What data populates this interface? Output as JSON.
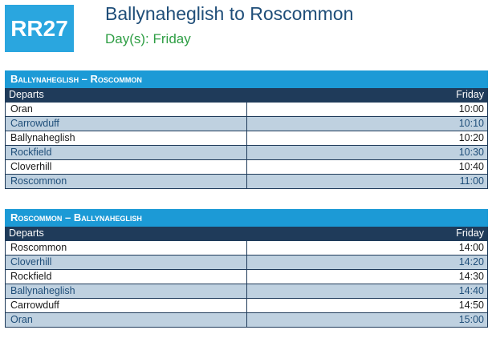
{
  "header": {
    "route_code": "RR27",
    "route_name": "Ballynaheglish to Roscommon",
    "days": "Day(s): Friday"
  },
  "timetables": [
    {
      "section_title": "Ballynaheglish – Roscommon",
      "columns": {
        "stop": "Departs",
        "day": "Friday"
      },
      "rows": [
        {
          "stop": "Oran",
          "time": "10:00"
        },
        {
          "stop": "Carrowduff",
          "time": "10:10"
        },
        {
          "stop": "Ballynaheglish",
          "time": "10:20"
        },
        {
          "stop": "Rockfield",
          "time": "10:30"
        },
        {
          "stop": "Cloverhill",
          "time": "10:40"
        },
        {
          "stop": "Roscommon",
          "time": "11:00"
        }
      ]
    },
    {
      "section_title": "Roscommon – Ballynaheglish",
      "columns": {
        "stop": "Departs",
        "day": "Friday"
      },
      "rows": [
        {
          "stop": "Roscommon",
          "time": "14:00"
        },
        {
          "stop": "Cloverhill",
          "time": "14:20"
        },
        {
          "stop": "Rockfield",
          "time": "14:30"
        },
        {
          "stop": "Ballynaheglish",
          "time": "14:40"
        },
        {
          "stop": "Carrowduff",
          "time": "14:50"
        },
        {
          "stop": "Oran",
          "time": "15:00"
        }
      ]
    }
  ],
  "colors": {
    "badge": "#2aa6df",
    "section_header": "#1c9ad6",
    "column_header": "#1f3b5a",
    "alt_row": "#bfd1e0",
    "title_text": "#1f4e79",
    "days_text": "#2e9e44"
  }
}
